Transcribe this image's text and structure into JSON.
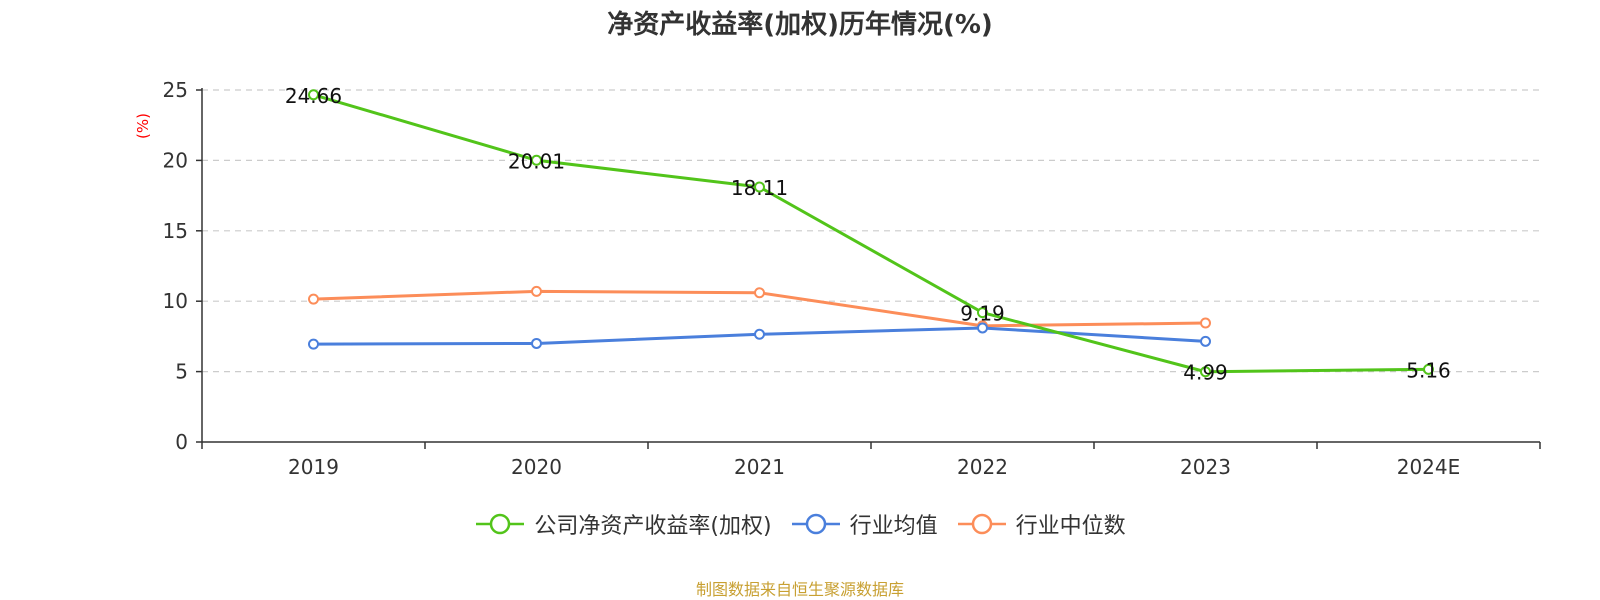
{
  "chart_data": {
    "type": "line",
    "title": "净资产收益率(加权)历年情况(%)",
    "ylabel": "(%)",
    "xlabel": "",
    "categories": [
      "2019",
      "2020",
      "2021",
      "2022",
      "2023",
      "2024E"
    ],
    "ylim": [
      0,
      25
    ],
    "yticks": [
      0,
      5,
      10,
      15,
      20,
      25
    ],
    "grid": true,
    "legend_position": "bottom",
    "series": [
      {
        "name": "公司净资产收益率(加权)",
        "color": "#52c41a",
        "values": [
          24.66,
          20.01,
          18.11,
          9.19,
          4.99,
          5.16
        ],
        "labels": [
          "24.66",
          "20.01",
          "18.11",
          "9.19",
          "4.99",
          "5.16"
        ]
      },
      {
        "name": "行业均值",
        "color": "#4a7fdc",
        "values": [
          6.95,
          7.0,
          7.65,
          8.1,
          7.15,
          null
        ]
      },
      {
        "name": "行业中位数",
        "color": "#fc8d59",
        "values": [
          10.15,
          10.7,
          10.6,
          8.25,
          8.45,
          null
        ]
      }
    ]
  },
  "source_text": "制图数据来自恒生聚源数据库",
  "colors": {
    "source": "#c8a032",
    "ylabel": "#ff0000",
    "axis": "#333333",
    "grid": "#cccccc"
  }
}
